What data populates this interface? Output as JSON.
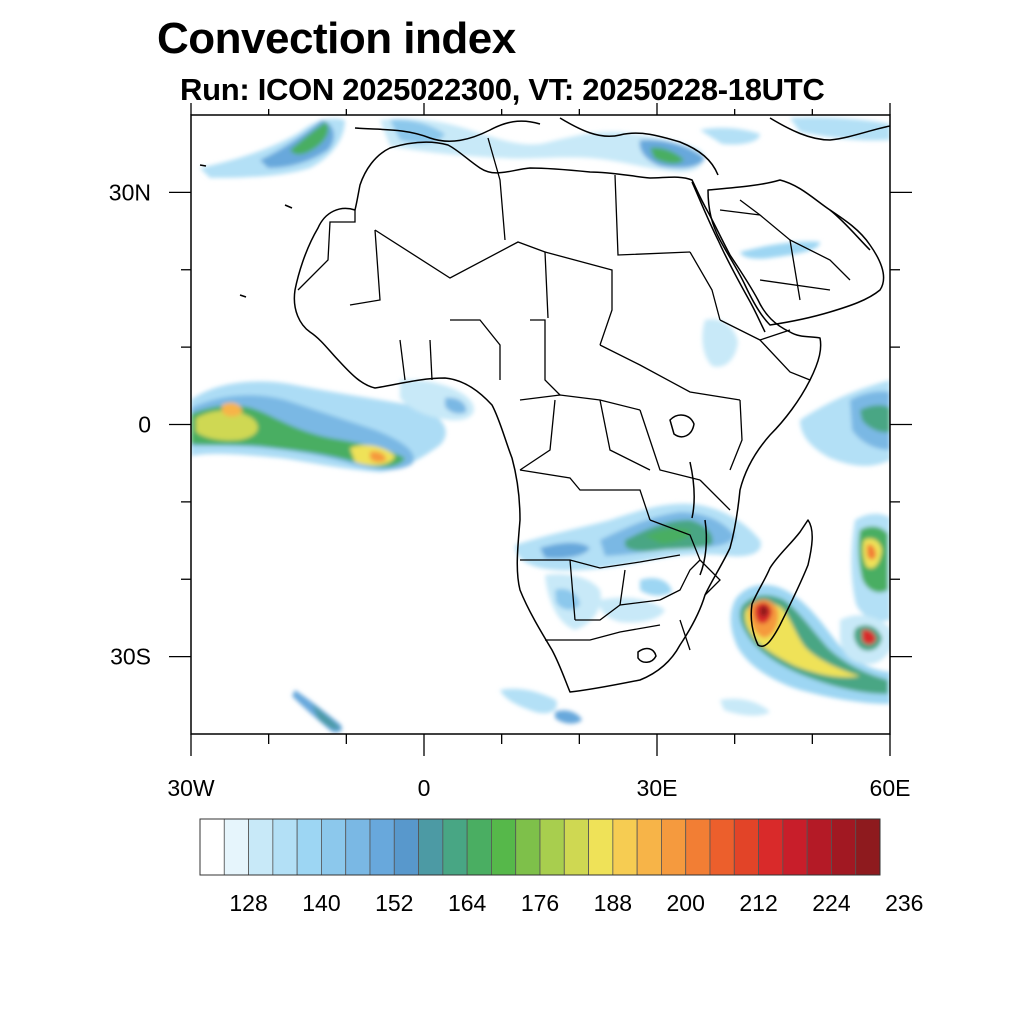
{
  "header": {
    "title": "Convection index",
    "subtitle": "Run: ICON 2025022300,  VT: 20250228-18UTC"
  },
  "map": {
    "region": "Africa",
    "lon_range": [
      -30,
      60
    ],
    "lat_range": [
      -40,
      40
    ],
    "lon_ticks": [
      {
        "value": -30,
        "label": "30W"
      },
      {
        "value": 0,
        "label": "0"
      },
      {
        "value": 30,
        "label": "30E"
      },
      {
        "value": 60,
        "label": "60E"
      }
    ],
    "lat_ticks": [
      {
        "value": 30,
        "label": "30N"
      },
      {
        "value": 0,
        "label": "0"
      },
      {
        "value": -30,
        "label": "30S"
      }
    ],
    "minor_lon_ticks": [
      -20,
      -10,
      10,
      20,
      40,
      50
    ],
    "minor_lat_ticks": [
      20,
      10,
      -10,
      -20
    ]
  },
  "colorbar": {
    "colors": [
      "#ffffff",
      "#e6f5fc",
      "#c8e9f8",
      "#b3e0f6",
      "#9dd6f3",
      "#8cc8ec",
      "#7ab8e4",
      "#68a8dc",
      "#5898cc",
      "#4c9aa4",
      "#48a684",
      "#4aae62",
      "#56b84a",
      "#7ec04a",
      "#a8ce4e",
      "#cfd852",
      "#efe258",
      "#f6cc52",
      "#f7b448",
      "#f59a3e",
      "#f27e34",
      "#ec5f2c",
      "#e24428",
      "#d92a2a",
      "#c81e2a",
      "#b41a26",
      "#a11822",
      "#8e1a1e"
    ],
    "labels": [
      "128",
      "140",
      "152",
      "164",
      "176",
      "188",
      "200",
      "212",
      "224",
      "236"
    ]
  }
}
